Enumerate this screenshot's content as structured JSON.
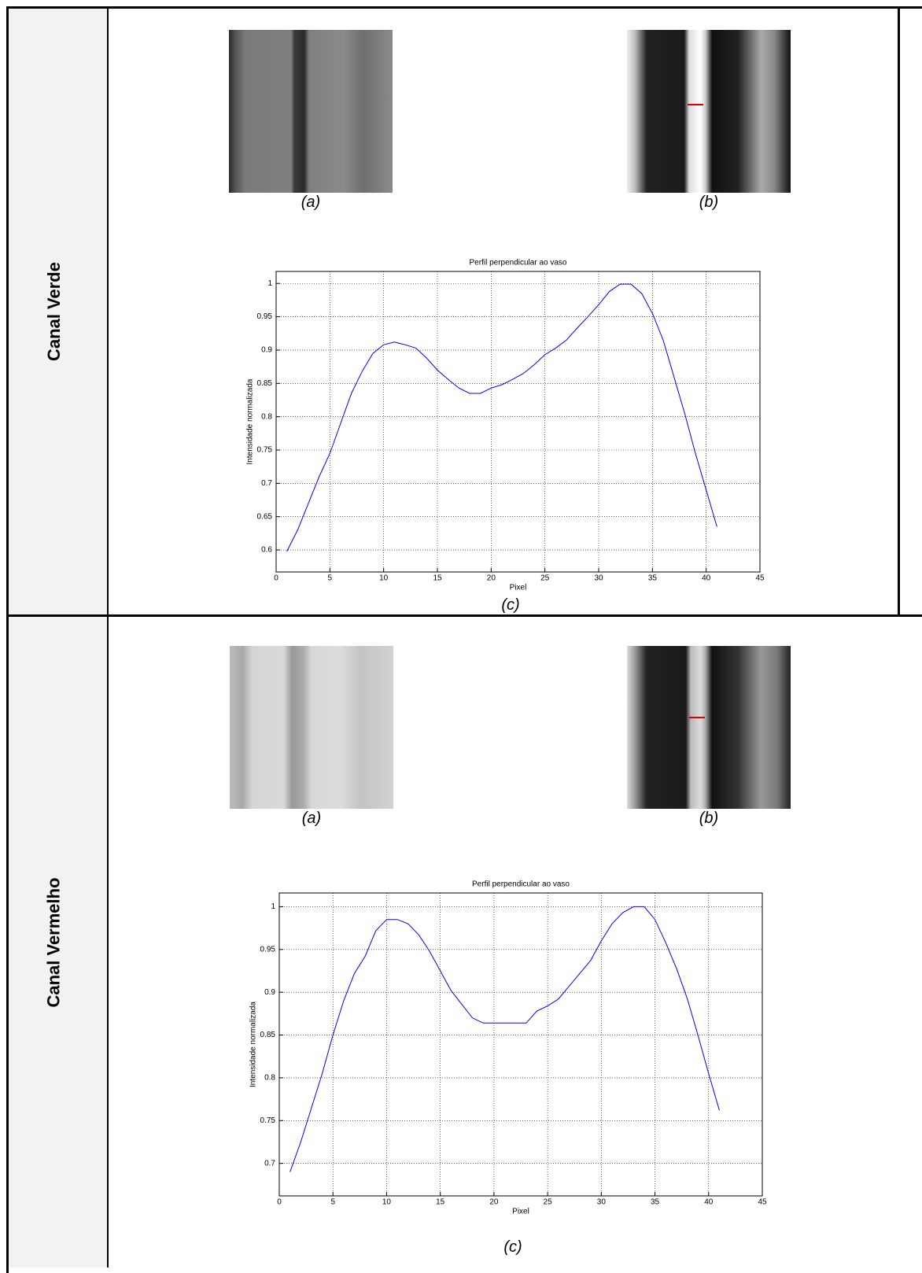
{
  "rows": [
    {
      "label": "Canal Verde",
      "captions": [
        "(a)",
        "(b)",
        "(c)"
      ]
    },
    {
      "label": "Canal Vermelho",
      "captions": [
        "(a)",
        "(b)",
        "(c)"
      ]
    }
  ],
  "chart_data": [
    {
      "type": "line",
      "title": "Perfil perpendicular ao vaso",
      "x_label": "Pixel",
      "y_label": "Intensidade normalizada",
      "x": [
        1,
        2,
        3,
        4,
        5,
        6,
        7,
        8,
        9,
        10,
        11,
        12,
        13,
        14,
        15,
        16,
        17,
        18,
        19,
        20,
        21,
        22,
        23,
        24,
        25,
        26,
        27,
        28,
        29,
        30,
        31,
        32,
        33,
        34,
        35,
        36,
        37,
        38,
        39,
        40,
        41
      ],
      "values": [
        0.598,
        0.63,
        0.67,
        0.71,
        0.745,
        0.79,
        0.835,
        0.868,
        0.895,
        0.908,
        0.912,
        0.908,
        0.903,
        0.888,
        0.87,
        0.856,
        0.843,
        0.835,
        0.835,
        0.843,
        0.848,
        0.856,
        0.865,
        0.878,
        0.893,
        0.903,
        0.915,
        0.933,
        0.95,
        0.968,
        0.988,
        0.999,
        0.999,
        0.985,
        0.955,
        0.915,
        0.86,
        0.805,
        0.745,
        0.69,
        0.635
      ],
      "color": "#0000ff",
      "xlim": [
        0,
        45
      ],
      "xticks": [
        0,
        5,
        10,
        15,
        20,
        25,
        30,
        35,
        40,
        45
      ],
      "ylim": [
        0.567,
        1.018
      ],
      "yticks": [
        0.6,
        0.65,
        0.7,
        0.75,
        0.8,
        0.85,
        0.9,
        0.95,
        1
      ],
      "grid": true
    },
    {
      "type": "line",
      "title": "Perfil perpendicular ao vaso",
      "x_label": "Pixel",
      "y_label": "Intensidade normalizada",
      "x": [
        1,
        2,
        3,
        4,
        5,
        6,
        7,
        8,
        9,
        10,
        11,
        12,
        13,
        14,
        15,
        16,
        17,
        18,
        19,
        20,
        21,
        22,
        23,
        24,
        25,
        26,
        27,
        28,
        29,
        30,
        31,
        32,
        33,
        34,
        35,
        36,
        37,
        38,
        39,
        40,
        41
      ],
      "values": [
        0.69,
        0.725,
        0.765,
        0.805,
        0.85,
        0.89,
        0.922,
        0.942,
        0.972,
        0.985,
        0.985,
        0.98,
        0.967,
        0.948,
        0.925,
        0.902,
        0.886,
        0.87,
        0.864,
        0.864,
        0.864,
        0.864,
        0.864,
        0.878,
        0.884,
        0.892,
        0.907,
        0.922,
        0.937,
        0.96,
        0.98,
        0.993,
        1.0,
        1.0,
        0.985,
        0.958,
        0.928,
        0.893,
        0.85,
        0.805,
        0.762
      ],
      "color": "#0000ff",
      "xlim": [
        0,
        45
      ],
      "xticks": [
        0,
        5,
        10,
        15,
        20,
        25,
        30,
        35,
        40,
        45
      ],
      "ylim": [
        0.662,
        1.016
      ],
      "yticks": [
        0.7,
        0.75,
        0.8,
        0.85,
        0.9,
        0.95,
        1
      ],
      "grid": true
    }
  ]
}
